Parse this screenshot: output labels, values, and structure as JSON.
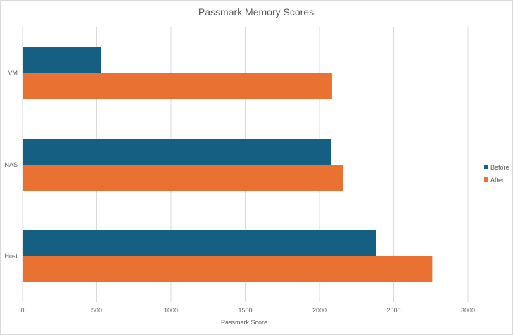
{
  "chart_data": {
    "type": "bar",
    "orientation": "horizontal",
    "title": "Passmark Memory Scores",
    "xlabel": "Passmark Score",
    "ylabel": "",
    "categories": [
      "VM",
      "NAS",
      "Host"
    ],
    "series": [
      {
        "name": "Before",
        "color": "#156082",
        "values": [
          530,
          2080,
          2380
        ]
      },
      {
        "name": "After",
        "color": "#E97132",
        "values": [
          2085,
          2160,
          2760
        ]
      }
    ],
    "xlim": [
      0,
      3000
    ],
    "xticks": [
      "0",
      "500",
      "1000",
      "1500",
      "2000",
      "2500",
      "3000"
    ],
    "grid": "vertical",
    "legend_position": "right"
  }
}
